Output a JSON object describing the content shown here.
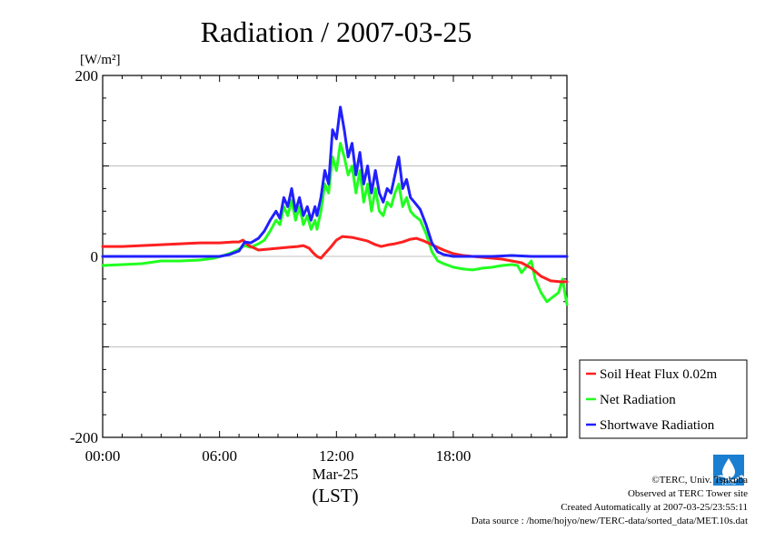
{
  "chart_data": {
    "type": "line",
    "title": "Radiation / 2007-03-25",
    "ylabel_unit": "[W/m²]",
    "ylim": [
      -200,
      200
    ],
    "yticks": [
      "200",
      "0",
      "-200"
    ],
    "xlim": [
      0,
      23.83
    ],
    "xticks": [
      {
        "label": "00:00",
        "value": 0
      },
      {
        "label": "06:00",
        "value": 6
      },
      {
        "label": "12:00",
        "value": 12
      },
      {
        "label": "18:00",
        "value": 18
      }
    ],
    "x_date_label": "Mar-25",
    "x_tz_label": "(LST)",
    "grid": true,
    "legend_position": "bottom-right",
    "series": [
      {
        "name": "Soil Heat Flux 0.02m",
        "color": "#ff2020",
        "points": [
          [
            0,
            11
          ],
          [
            1,
            11
          ],
          [
            2,
            12
          ],
          [
            3,
            13
          ],
          [
            4,
            14
          ],
          [
            5,
            15
          ],
          [
            6,
            15
          ],
          [
            6.7,
            16
          ],
          [
            7.0,
            16
          ],
          [
            7.2,
            18
          ],
          [
            7.5,
            12
          ],
          [
            7.8,
            9
          ],
          [
            8.0,
            7
          ],
          [
            8.5,
            8
          ],
          [
            9.0,
            9
          ],
          [
            9.5,
            10
          ],
          [
            10.0,
            11
          ],
          [
            10.3,
            12
          ],
          [
            10.6,
            9
          ],
          [
            10.8,
            4
          ],
          [
            11.0,
            0
          ],
          [
            11.2,
            -2
          ],
          [
            11.4,
            3
          ],
          [
            11.7,
            10
          ],
          [
            12.0,
            18
          ],
          [
            12.3,
            22
          ],
          [
            12.8,
            21
          ],
          [
            13.2,
            19
          ],
          [
            13.6,
            17
          ],
          [
            14.0,
            13
          ],
          [
            14.3,
            11
          ],
          [
            14.7,
            13
          ],
          [
            15.0,
            14
          ],
          [
            15.4,
            16
          ],
          [
            15.8,
            19
          ],
          [
            16.1,
            20
          ],
          [
            16.5,
            17
          ],
          [
            17.0,
            12
          ],
          [
            17.5,
            7
          ],
          [
            18.0,
            3
          ],
          [
            18.5,
            1
          ],
          [
            19.0,
            0
          ],
          [
            19.5,
            -1
          ],
          [
            20.0,
            -2
          ],
          [
            20.5,
            -3
          ],
          [
            21.0,
            -5
          ],
          [
            21.5,
            -7
          ],
          [
            22.0,
            -13
          ],
          [
            22.5,
            -22
          ],
          [
            23.0,
            -27
          ],
          [
            23.5,
            -28
          ],
          [
            23.83,
            -28
          ]
        ]
      },
      {
        "name": "Net Radiation",
        "color": "#20ff20",
        "points": [
          [
            0,
            -10
          ],
          [
            1,
            -9
          ],
          [
            2,
            -8
          ],
          [
            3,
            -5
          ],
          [
            4,
            -5
          ],
          [
            5,
            -4
          ],
          [
            5.7,
            -2
          ],
          [
            6.2,
            1
          ],
          [
            6.6,
            4
          ],
          [
            7.0,
            8
          ],
          [
            7.3,
            12
          ],
          [
            7.6,
            10
          ],
          [
            8.0,
            14
          ],
          [
            8.3,
            18
          ],
          [
            8.6,
            28
          ],
          [
            8.9,
            40
          ],
          [
            9.1,
            35
          ],
          [
            9.3,
            55
          ],
          [
            9.5,
            45
          ],
          [
            9.7,
            62
          ],
          [
            9.9,
            40
          ],
          [
            10.1,
            55
          ],
          [
            10.3,
            35
          ],
          [
            10.5,
            45
          ],
          [
            10.7,
            30
          ],
          [
            10.9,
            40
          ],
          [
            11.0,
            30
          ],
          [
            11.2,
            50
          ],
          [
            11.4,
            80
          ],
          [
            11.6,
            70
          ],
          [
            11.8,
            110
          ],
          [
            12.0,
            95
          ],
          [
            12.2,
            125
          ],
          [
            12.4,
            110
          ],
          [
            12.6,
            90
          ],
          [
            12.8,
            100
          ],
          [
            13.0,
            70
          ],
          [
            13.2,
            95
          ],
          [
            13.4,
            60
          ],
          [
            13.6,
            80
          ],
          [
            13.8,
            50
          ],
          [
            14.0,
            75
          ],
          [
            14.2,
            50
          ],
          [
            14.4,
            45
          ],
          [
            14.6,
            60
          ],
          [
            14.8,
            55
          ],
          [
            15.0,
            70
          ],
          [
            15.2,
            80
          ],
          [
            15.4,
            55
          ],
          [
            15.6,
            65
          ],
          [
            15.8,
            50
          ],
          [
            16.0,
            45
          ],
          [
            16.3,
            40
          ],
          [
            16.6,
            25
          ],
          [
            16.9,
            5
          ],
          [
            17.2,
            -5
          ],
          [
            17.5,
            -8
          ],
          [
            18.0,
            -12
          ],
          [
            18.5,
            -14
          ],
          [
            19.0,
            -15
          ],
          [
            19.5,
            -13
          ],
          [
            20.0,
            -12
          ],
          [
            20.5,
            -10
          ],
          [
            21.0,
            -9
          ],
          [
            21.3,
            -10
          ],
          [
            21.5,
            -18
          ],
          [
            21.8,
            -10
          ],
          [
            22.0,
            -5
          ],
          [
            22.2,
            -25
          ],
          [
            22.5,
            -40
          ],
          [
            22.8,
            -50
          ],
          [
            23.1,
            -45
          ],
          [
            23.4,
            -40
          ],
          [
            23.6,
            -25
          ],
          [
            23.83,
            -53
          ]
        ]
      },
      {
        "name": "Shortwave Radiation",
        "color": "#2020ff",
        "points": [
          [
            0,
            0
          ],
          [
            6.0,
            0
          ],
          [
            6.5,
            2
          ],
          [
            7.0,
            6
          ],
          [
            7.3,
            16
          ],
          [
            7.6,
            15
          ],
          [
            8.0,
            20
          ],
          [
            8.3,
            28
          ],
          [
            8.6,
            40
          ],
          [
            8.9,
            50
          ],
          [
            9.1,
            42
          ],
          [
            9.3,
            65
          ],
          [
            9.5,
            55
          ],
          [
            9.7,
            75
          ],
          [
            9.9,
            50
          ],
          [
            10.1,
            65
          ],
          [
            10.3,
            45
          ],
          [
            10.5,
            55
          ],
          [
            10.7,
            40
          ],
          [
            10.9,
            55
          ],
          [
            11.0,
            45
          ],
          [
            11.2,
            65
          ],
          [
            11.4,
            95
          ],
          [
            11.6,
            80
          ],
          [
            11.8,
            140
          ],
          [
            12.0,
            130
          ],
          [
            12.2,
            165
          ],
          [
            12.4,
            140
          ],
          [
            12.6,
            110
          ],
          [
            12.8,
            125
          ],
          [
            13.0,
            90
          ],
          [
            13.2,
            115
          ],
          [
            13.4,
            80
          ],
          [
            13.6,
            100
          ],
          [
            13.8,
            70
          ],
          [
            14.0,
            95
          ],
          [
            14.2,
            70
          ],
          [
            14.4,
            60
          ],
          [
            14.6,
            75
          ],
          [
            14.8,
            70
          ],
          [
            15.0,
            90
          ],
          [
            15.2,
            110
          ],
          [
            15.4,
            75
          ],
          [
            15.6,
            85
          ],
          [
            15.8,
            65
          ],
          [
            16.0,
            60
          ],
          [
            16.3,
            52
          ],
          [
            16.6,
            35
          ],
          [
            16.9,
            15
          ],
          [
            17.2,
            5
          ],
          [
            17.5,
            2
          ],
          [
            18.0,
            0
          ],
          [
            20.0,
            0
          ],
          [
            21.0,
            1
          ],
          [
            22.0,
            0
          ],
          [
            23.0,
            0
          ],
          [
            23.83,
            0
          ]
        ]
      }
    ]
  },
  "footer": {
    "copyright": "©TERC, Univ. Tsukuba",
    "observed": "Observed at TERC Tower site",
    "created": "Created Automatically at 2007-03-25/23:55:11",
    "source": "Data source : /home/hojyo/new/TERC-data/sorted_data/MET.10s.dat"
  }
}
